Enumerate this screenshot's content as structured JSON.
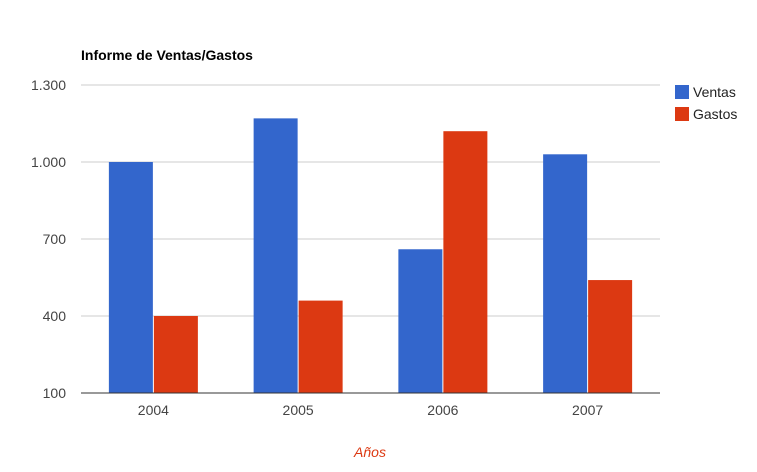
{
  "chart_data": {
    "type": "bar",
    "title": "Informe de Ventas/Gastos",
    "xlabel": "Años",
    "ylabel": "",
    "categories": [
      "2004",
      "2005",
      "2006",
      "2007"
    ],
    "series": [
      {
        "name": "Ventas",
        "color": "#3366cc",
        "values": [
          1000,
          1170,
          660,
          1030
        ]
      },
      {
        "name": "Gastos",
        "color": "#dc3912",
        "values": [
          400,
          460,
          1120,
          540
        ]
      }
    ],
    "ylim": [
      100,
      1300
    ],
    "yticks": [
      100,
      400,
      700,
      1000,
      1300
    ],
    "ytick_labels": [
      "100",
      "400",
      "700",
      "1.000",
      "1.300"
    ],
    "grid": true,
    "legend_position": "right"
  }
}
